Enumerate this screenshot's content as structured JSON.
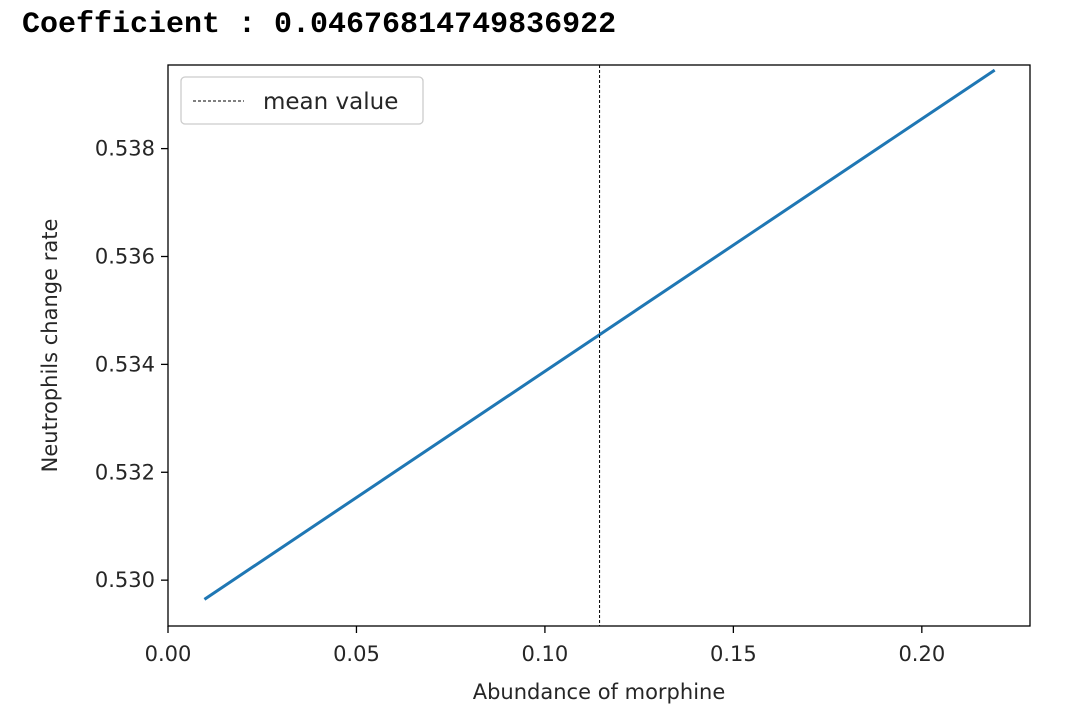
{
  "output": {
    "coefficient_line": "Coefficient : 0.04676814749836922"
  },
  "chart_data": {
    "type": "line",
    "title": "",
    "xlabel": "Abundance of morphine",
    "ylabel": "Neutrophils change rate",
    "xlim": [
      0.0,
      0.2287
    ],
    "ylim": [
      0.52915,
      0.53955
    ],
    "xticks": [
      0.0,
      0.05,
      0.1,
      0.15,
      0.2
    ],
    "xtick_labels": [
      "0.00",
      "0.05",
      "0.10",
      "0.15",
      "0.20"
    ],
    "yticks": [
      0.53,
      0.532,
      0.534,
      0.536,
      0.538
    ],
    "ytick_labels": [
      "0.530",
      "0.532",
      "0.534",
      "0.536",
      "0.538"
    ],
    "grid": false,
    "series": [
      {
        "x": [
          0.01,
          0.219
        ],
        "y": [
          0.52966,
          0.53944
        ],
        "color": "#1f77b4",
        "style": "solid"
      }
    ],
    "vlines": [
      {
        "name": "mean value",
        "x": 0.1145,
        "color": "#000000",
        "style": "dashed"
      }
    ],
    "legend": {
      "placement": "upper left",
      "entries": [
        "mean value"
      ]
    }
  }
}
